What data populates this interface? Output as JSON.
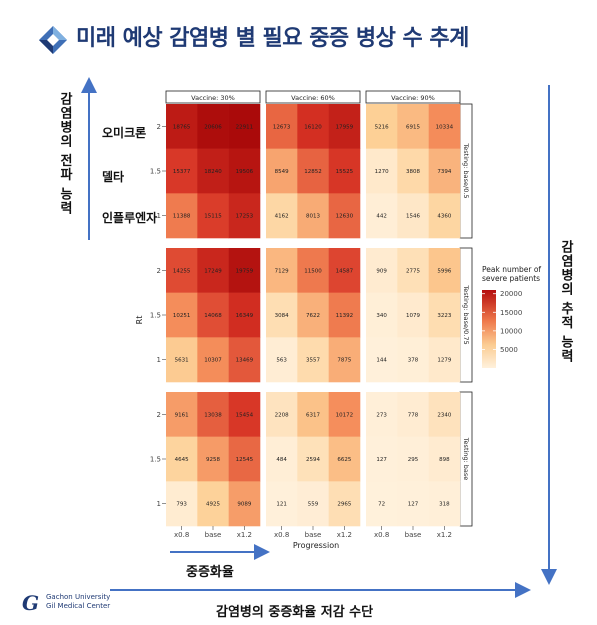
{
  "title": "미래 예상 감염병 별 필요 중증 병상 수 추계",
  "left_axis_label": "감염병의 전파 능력",
  "right_axis_label": "감염병의 추적 능력",
  "bottom_axis_label": "감염병의 중증화율 저감 수단",
  "progression_axis_label": "중증화율",
  "variants": [
    {
      "label": "오미크론",
      "rt": "2"
    },
    {
      "label": "델타",
      "rt": "1.5"
    },
    {
      "label": "인플루엔자",
      "rt": "1"
    }
  ],
  "university": {
    "line1": "Gachon University",
    "line2": "Gil Medical Center",
    "mark": "G"
  },
  "chart_data": {
    "type": "heatmap",
    "xlabel": "Progression",
    "ylabel": "Rt",
    "x_categories": [
      "x0.8",
      "base",
      "x1.2"
    ],
    "y_categories": [
      "2",
      "1.5",
      "1"
    ],
    "column_facets": [
      "Vaccine: 30%",
      "Vaccine: 60%",
      "Vaccine: 90%"
    ],
    "row_facets": [
      "Testing: base/0.5",
      "Testing: base/0.75",
      "Testing: base"
    ],
    "legend": {
      "title": "Peak number of\nsevere patients",
      "ticks": [
        5000,
        10000,
        15000,
        20000
      ],
      "range": [
        0,
        21000
      ],
      "placement": "right",
      "color_low": "#fff1dc",
      "color_high": "#b50d0d"
    },
    "panels": [
      [
        [
          [
            18765,
            20606,
            22911
          ],
          [
            15377,
            18240,
            19506
          ],
          [
            11388,
            15115,
            17253
          ]
        ],
        [
          [
            12673,
            16120,
            17959
          ],
          [
            8549,
            12852,
            15525
          ],
          [
            4162,
            8013,
            12630
          ]
        ],
        [
          [
            5216,
            6915,
            10334
          ],
          [
            1270,
            3808,
            7394
          ],
          [
            442,
            1546,
            4360
          ]
        ]
      ],
      [
        [
          [
            14255,
            17249,
            19759
          ],
          [
            10251,
            14068,
            16349
          ],
          [
            5631,
            10307,
            13469
          ]
        ],
        [
          [
            7129,
            11500,
            14587
          ],
          [
            3084,
            7622,
            11392
          ],
          [
            563,
            3557,
            7875
          ]
        ],
        [
          [
            909,
            2775,
            5996
          ],
          [
            340,
            1079,
            3223
          ],
          [
            144,
            378,
            1279
          ]
        ]
      ],
      [
        [
          [
            9161,
            13038,
            15454
          ],
          [
            4645,
            9258,
            12545
          ],
          [
            793,
            4925,
            9089
          ]
        ],
        [
          [
            2208,
            6317,
            10172
          ],
          [
            484,
            2594,
            6625
          ],
          [
            121,
            559,
            2965
          ]
        ],
        [
          [
            273,
            778,
            2340
          ],
          [
            127,
            295,
            898
          ],
          [
            72,
            127,
            318
          ]
        ]
      ]
    ]
  }
}
